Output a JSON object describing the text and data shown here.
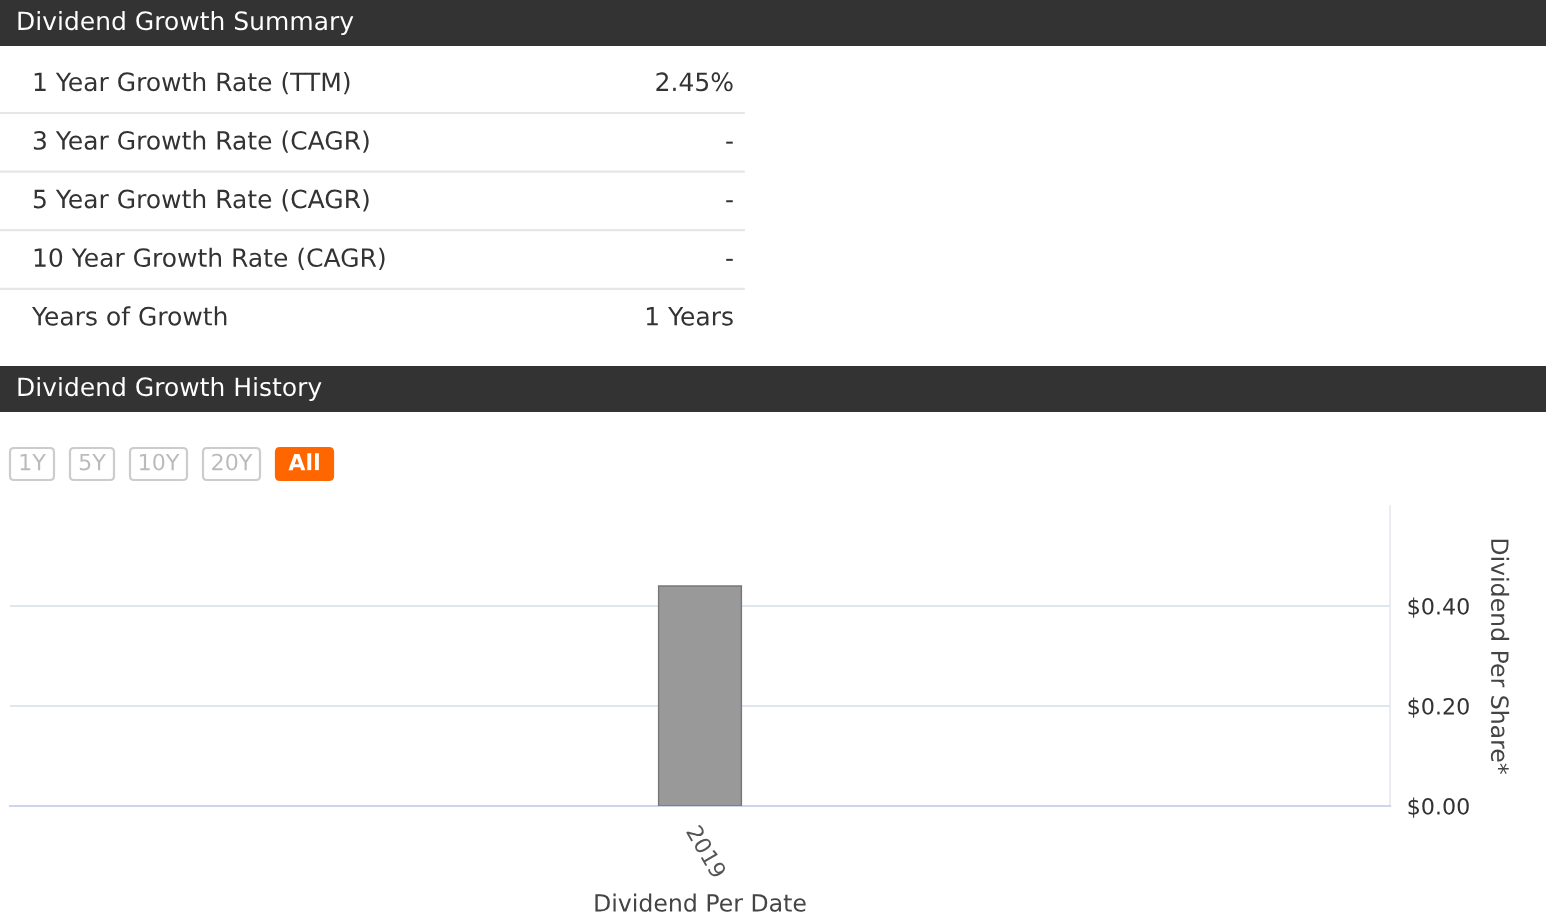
{
  "chart_data": [
    {
      "type": "other",
      "title": "Dividend Growth Summary",
      "annotations": [
        "1 Year Growth Rate (TTM)",
        "2.45%",
        "3 Year Growth Rate (CAGR)",
        "-",
        "5 Year Growth Rate (CAGR)",
        "-",
        "10 Year Growth Rate (CAGR)",
        "-",
        "Years of Growth",
        "1 Years"
      ]
    },
    {
      "type": "bar",
      "title": "Dividend Growth History",
      "annotations": [
        "1Y",
        "5Y",
        "10Y",
        "20Y",
        "All"
      ],
      "categories": [
        "2019"
      ],
      "values": [
        0.44
      ],
      "color": "#999999",
      "xlabel": "Dividend Per Date",
      "ylabel": "Dividend Per Share*",
      "ylim": [
        0,
        0.6
      ],
      "yticks": [
        {
          "value": 0,
          "label": "$0.00"
        },
        {
          "value": 0.2,
          "label": "$0.20"
        },
        {
          "value": 0.4,
          "label": "$0.40"
        }
      ],
      "grid": "y"
    }
  ]
}
